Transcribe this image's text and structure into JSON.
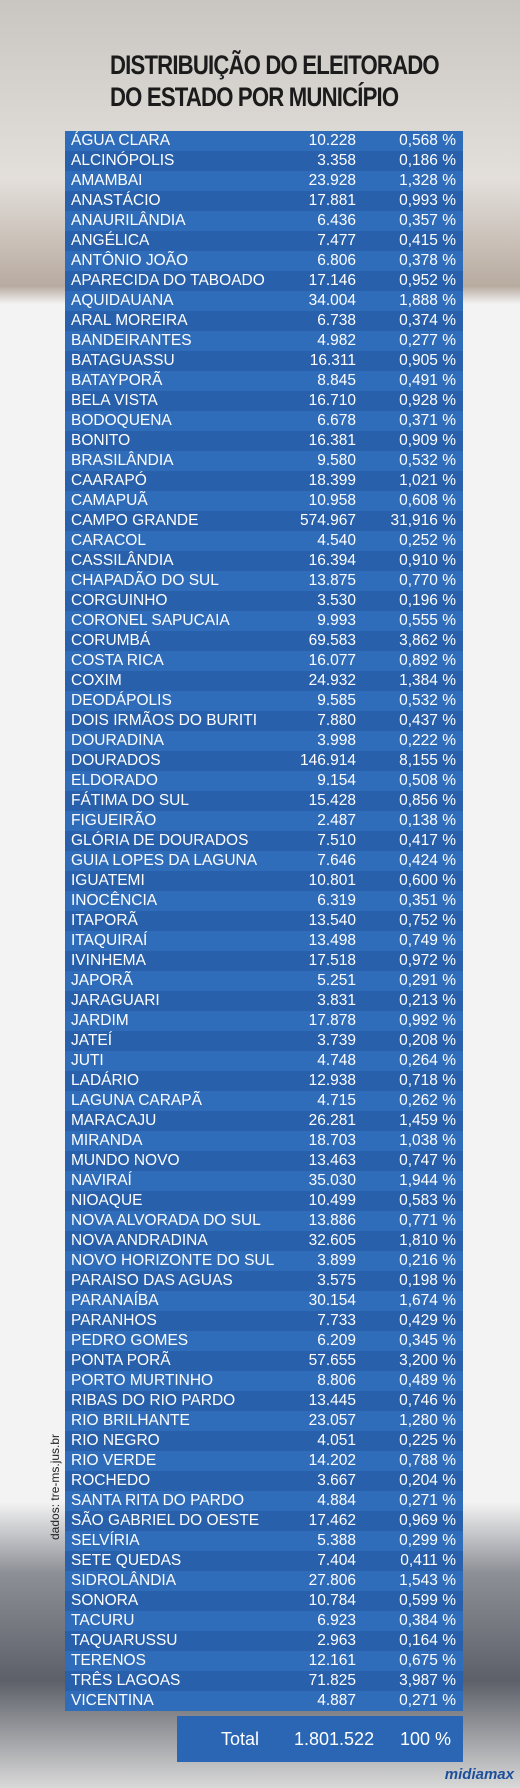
{
  "header": {
    "title_line1": "DISTRIBUIÇÃO DO ELEITORADO",
    "title_line2": "DO ESTADO POR MUNICÍPIO"
  },
  "table": {
    "rows": [
      [
        "ÁGUA CLARA",
        "10.228",
        "0,568 %"
      ],
      [
        "ALCINÓPOLIS",
        "3.358",
        "0,186 %"
      ],
      [
        "AMAMBAI",
        "23.928",
        "1,328 %"
      ],
      [
        "ANASTÁCIO",
        "17.881",
        "0,993 %"
      ],
      [
        "ANAURILÂNDIA",
        "6.436",
        "0,357 %"
      ],
      [
        "ANGÉLICA",
        "7.477",
        "0,415 %"
      ],
      [
        "ANTÔNIO JOÃO",
        "6.806",
        "0,378 %"
      ],
      [
        "APARECIDA DO TABOADO",
        "17.146",
        "0,952 %"
      ],
      [
        "AQUIDAUANA",
        "34.004",
        "1,888 %"
      ],
      [
        "ARAL MOREIRA",
        "6.738",
        "0,374 %"
      ],
      [
        "BANDEIRANTES",
        "4.982",
        "0,277 %"
      ],
      [
        "BATAGUASSU",
        "16.311",
        "0,905 %"
      ],
      [
        "BATAYPORÃ",
        "8.845",
        "0,491 %"
      ],
      [
        "BELA VISTA",
        "16.710",
        "0,928 %"
      ],
      [
        "BODOQUENA",
        "6.678",
        "0,371 %"
      ],
      [
        "BONITO",
        "16.381",
        "0,909 %"
      ],
      [
        "BRASILÂNDIA",
        "9.580",
        "0,532 %"
      ],
      [
        "CAARAPÓ",
        "18.399",
        "1,021 %"
      ],
      [
        "CAMAPUÃ",
        "10.958",
        "0,608 %"
      ],
      [
        "CAMPO GRANDE",
        "574.967",
        "31,916 %"
      ],
      [
        "CARACOL",
        "4.540",
        "0,252 %"
      ],
      [
        "CASSILÂNDIA",
        "16.394",
        "0,910 %"
      ],
      [
        "CHAPADÃO DO SUL",
        "13.875",
        "0,770 %"
      ],
      [
        "CORGUINHO",
        "3.530",
        "0,196 %"
      ],
      [
        "CORONEL SAPUCAIA",
        "9.993",
        "0,555 %"
      ],
      [
        "CORUMBÁ",
        "69.583",
        "3,862 %"
      ],
      [
        "COSTA RICA",
        "16.077",
        "0,892 %"
      ],
      [
        "COXIM",
        "24.932",
        "1,384 %"
      ],
      [
        "DEODÁPOLIS",
        "9.585",
        "0,532 %"
      ],
      [
        "DOIS IRMÃOS DO BURITI",
        "7.880",
        "0,437 %"
      ],
      [
        "DOURADINA",
        "3.998",
        "0,222 %"
      ],
      [
        "DOURADOS",
        "146.914",
        "8,155 %"
      ],
      [
        "ELDORADO",
        "9.154",
        "0,508 %"
      ],
      [
        "FÁTIMA DO SUL",
        "15.428",
        "0,856 %"
      ],
      [
        "FIGUEIRÃO",
        "2.487",
        "0,138 %"
      ],
      [
        "GLÓRIA DE DOURADOS",
        "7.510",
        "0,417 %"
      ],
      [
        "GUIA LOPES DA LAGUNA",
        "7.646",
        "0,424 %"
      ],
      [
        "IGUATEMI",
        "10.801",
        "0,600 %"
      ],
      [
        "INOCÊNCIA",
        "6.319",
        "0,351 %"
      ],
      [
        "ITAPORÃ",
        "13.540",
        "0,752 %"
      ],
      [
        "ITAQUIRAÍ",
        "13.498",
        "0,749 %"
      ],
      [
        "IVINHEMA",
        "17.518",
        "0,972 %"
      ],
      [
        "JAPORÃ",
        "5.251",
        "0,291 %"
      ],
      [
        "JARAGUARI",
        "3.831",
        "0,213 %"
      ],
      [
        "JARDIM",
        "17.878",
        "0,992 %"
      ],
      [
        "JATEÍ",
        "3.739",
        "0,208 %"
      ],
      [
        "JUTI",
        "4.748",
        "0,264 %"
      ],
      [
        "LADÁRIO",
        "12.938",
        "0,718 %"
      ],
      [
        "LAGUNA CARAPÃ",
        "4.715",
        "0,262 %"
      ],
      [
        "MARACAJU",
        "26.281",
        "1,459 %"
      ],
      [
        "MIRANDA",
        "18.703",
        "1,038 %"
      ],
      [
        "MUNDO NOVO",
        "13.463",
        "0,747 %"
      ],
      [
        "NAVIRAÍ",
        "35.030",
        "1,944 %"
      ],
      [
        "NIOAQUE",
        "10.499",
        "0,583 %"
      ],
      [
        "NOVA ALVORADA DO SUL",
        "13.886",
        "0,771 %"
      ],
      [
        "NOVA ANDRADINA",
        "32.605",
        "1,810 %"
      ],
      [
        "NOVO HORIZONTE DO SUL",
        "3.899",
        "0,216 %"
      ],
      [
        "PARAISO DAS AGUAS",
        "3.575",
        "0,198 %"
      ],
      [
        "PARANAÍBA",
        "30.154",
        "1,674 %"
      ],
      [
        "PARANHOS",
        "7.733",
        "0,429 %"
      ],
      [
        "PEDRO GOMES",
        "6.209",
        "0,345 %"
      ],
      [
        "PONTA PORÃ",
        "57.655",
        "3,200 %"
      ],
      [
        "PORTO MURTINHO",
        "8.806",
        "0,489 %"
      ],
      [
        "RIBAS DO RIO PARDO",
        "13.445",
        "0,746 %"
      ],
      [
        "RIO BRILHANTE",
        "23.057",
        "1,280 %"
      ],
      [
        "RIO NEGRO",
        "4.051",
        "0,225 %"
      ],
      [
        "RIO VERDE",
        "14.202",
        "0,788 %"
      ],
      [
        "ROCHEDO",
        "3.667",
        "0,204 %"
      ],
      [
        "SANTA RITA DO PARDO",
        "4.884",
        "0,271 %"
      ],
      [
        "SÃO GABRIEL DO OESTE",
        "17.462",
        "0,969 %"
      ],
      [
        "SELVÍRIA",
        "5.388",
        "0,299 %"
      ],
      [
        "SETE QUEDAS",
        "7.404",
        "0,411 %"
      ],
      [
        "SIDROLÂNDIA",
        "27.806",
        "1,543 %"
      ],
      [
        "SONORA",
        "10.784",
        "0,599 %"
      ],
      [
        "TACURU",
        "6.923",
        "0,384 %"
      ],
      [
        "TAQUARUSSU",
        "2.963",
        "0,164 %"
      ],
      [
        "TERENOS",
        "12.161",
        "0,675 %"
      ],
      [
        "TRÊS LAGOAS",
        "71.825",
        "3,987 %"
      ],
      [
        "VICENTINA",
        "4.887",
        "0,271 %"
      ]
    ],
    "total": [
      "Total",
      "1.801.522",
      "100 %"
    ]
  },
  "source": "dados: tre-ms.jus.br",
  "logo": "midiamax"
}
